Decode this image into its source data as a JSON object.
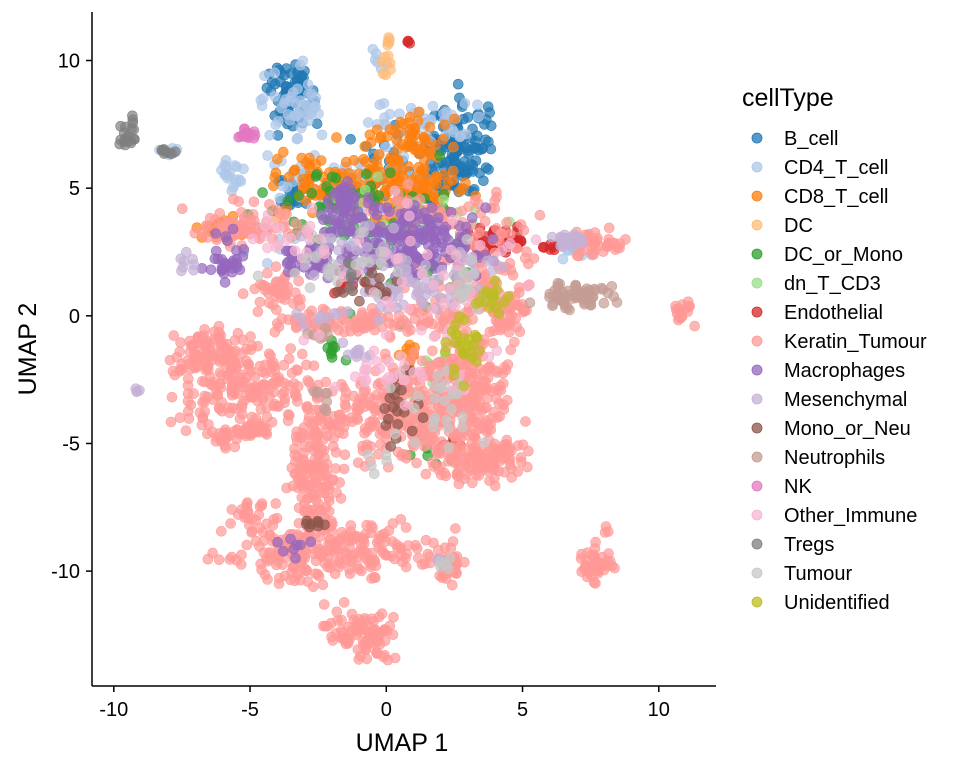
{
  "chart_data": {
    "type": "scatter",
    "title": "",
    "xlabel": "UMAP 1",
    "ylabel": "UMAP 2",
    "xlim": [
      -10.8,
      12.1
    ],
    "ylim": [
      -14.5,
      11.9
    ],
    "xticks": [
      -10,
      -5,
      0,
      5,
      10
    ],
    "yticks": [
      -10,
      -5,
      0,
      5,
      10
    ],
    "grid": false,
    "legend": {
      "title": "cellType",
      "placement": "right"
    },
    "series": [
      {
        "name": "B_cell",
        "color": "#1f77b4",
        "clusters": [
          [
            -3.5,
            8.7,
            0.6,
            0.9,
            70
          ],
          [
            2.6,
            6.6,
            0.8,
            1.2,
            120
          ],
          [
            -3.6,
            4.9,
            0.4,
            0.5,
            25
          ],
          [
            0.6,
            6.2,
            1.3,
            1.0,
            40
          ]
        ]
      },
      {
        "name": "CD4_T_cell",
        "color": "#aec7e8",
        "clusters": [
          [
            -3.3,
            8.3,
            0.7,
            0.9,
            45
          ],
          [
            -1.6,
            5.3,
            1.7,
            0.7,
            60
          ],
          [
            -5.7,
            5.5,
            0.4,
            0.3,
            18
          ],
          [
            1.5,
            7.6,
            1.5,
            0.6,
            40
          ],
          [
            -1.5,
            3.3,
            2.2,
            0.6,
            40
          ],
          [
            7.0,
            2.6,
            0.6,
            0.3,
            15
          ],
          [
            -8.0,
            6.4,
            0.3,
            0.15,
            8
          ],
          [
            -0.2,
            9.9,
            0.25,
            0.3,
            6
          ]
        ]
      },
      {
        "name": "CD8_T_cell",
        "color": "#ff7f0e",
        "clusters": [
          [
            0.4,
            5.3,
            1.6,
            0.9,
            140
          ],
          [
            -2.7,
            5.2,
            0.9,
            0.7,
            50
          ],
          [
            -6.0,
            3.4,
            0.5,
            0.3,
            22
          ],
          [
            0.9,
            7.1,
            0.8,
            0.6,
            40
          ],
          [
            0.8,
            -1.6,
            0.2,
            0.3,
            10
          ]
        ]
      },
      {
        "name": "DC",
        "color": "#ffbb78",
        "clusters": [
          [
            0.0,
            10.3,
            0.12,
            0.6,
            12
          ],
          [
            -4.0,
            3.9,
            0.3,
            0.2,
            6
          ]
        ]
      },
      {
        "name": "DC_or_Mono",
        "color": "#2ca02c",
        "clusters": [
          [
            -1.0,
            4.3,
            2.2,
            1.0,
            60
          ],
          [
            1.5,
            1.5,
            1.5,
            0.9,
            25
          ],
          [
            -2.0,
            -1.3,
            0.4,
            0.3,
            8
          ],
          [
            1.8,
            -5.3,
            0.8,
            0.5,
            10
          ]
        ]
      },
      {
        "name": "dn_T_CD3",
        "color": "#98df8a",
        "clusters": [
          [
            0.0,
            3.5,
            2.5,
            1.2,
            35
          ],
          [
            1.6,
            -2.5,
            0.9,
            0.9,
            18
          ]
        ]
      },
      {
        "name": "Endothelial",
        "color": "#d62728",
        "clusters": [
          [
            4.1,
            2.9,
            0.6,
            0.3,
            45
          ],
          [
            0.8,
            10.7,
            0.05,
            0.05,
            3
          ],
          [
            6.0,
            2.7,
            0.2,
            0.1,
            6
          ],
          [
            -1.2,
            1.5,
            0.6,
            0.4,
            15
          ],
          [
            2.5,
            -5.0,
            0.3,
            0.3,
            5
          ]
        ]
      },
      {
        "name": "Keratin_Tumour",
        "color": "#ff9896",
        "clusters": [
          [
            -2.0,
            -9.2,
            2.4,
            0.7,
            240
          ],
          [
            -2.7,
            -6.2,
            0.6,
            1.8,
            160
          ],
          [
            0.7,
            -3.8,
            1.9,
            1.2,
            280
          ],
          [
            3.0,
            -2.8,
            0.9,
            1.2,
            160
          ],
          [
            3.6,
            -5.5,
            0.9,
            0.6,
            130
          ],
          [
            -5.0,
            -2.8,
            1.5,
            1.0,
            180
          ],
          [
            -6.4,
            -1.4,
            0.8,
            0.6,
            90
          ],
          [
            -5.0,
            -4.5,
            0.4,
            0.2,
            35
          ],
          [
            -1.6,
            -0.3,
            2.2,
            0.3,
            90
          ],
          [
            2.3,
            -9.8,
            0.3,
            0.4,
            35
          ],
          [
            7.7,
            -9.7,
            0.4,
            0.4,
            40
          ],
          [
            -0.8,
            -12.4,
            0.8,
            0.6,
            90
          ],
          [
            3.8,
            1.8,
            1.2,
            1.5,
            90
          ],
          [
            4.4,
            0.3,
            0.5,
            0.6,
            50
          ],
          [
            -5.2,
            3.5,
            1.2,
            0.5,
            70
          ],
          [
            -4.0,
            1.0,
            0.7,
            0.6,
            40
          ],
          [
            7.6,
            2.9,
            0.7,
            0.3,
            40
          ],
          [
            10.9,
            0.2,
            0.3,
            0.3,
            20
          ],
          [
            2.0,
            0.0,
            0.8,
            0.6,
            40
          ],
          [
            1.8,
            4.1,
            1.5,
            0.5,
            40
          ],
          [
            -6.0,
            -4.8,
            0.3,
            0.3,
            20
          ],
          [
            -4.8,
            -7.6,
            0.5,
            0.3,
            20
          ],
          [
            8.1,
            -8.4,
            0.1,
            0.1,
            3
          ]
        ]
      },
      {
        "name": "Macrophages",
        "color": "#9467bd",
        "clusters": [
          [
            0.9,
            2.9,
            1.6,
            0.9,
            190
          ],
          [
            -1.5,
            4.1,
            0.5,
            0.6,
            50
          ],
          [
            -5.7,
            2.2,
            0.5,
            0.6,
            30
          ],
          [
            -2.3,
            2.1,
            0.7,
            0.5,
            30
          ],
          [
            -3.3,
            -9.0,
            0.4,
            0.3,
            8
          ],
          [
            -3.6,
            2.1,
            0.4,
            0.4,
            12
          ]
        ]
      },
      {
        "name": "Mesenchymal",
        "color": "#c5b0d5",
        "clusters": [
          [
            6.7,
            2.9,
            0.4,
            0.2,
            20
          ],
          [
            0.5,
            0.8,
            1.0,
            0.6,
            40
          ],
          [
            -0.8,
            2.3,
            1.5,
            0.8,
            50
          ],
          [
            2.8,
            1.8,
            0.7,
            0.5,
            20
          ],
          [
            -1.0,
            -1.4,
            0.5,
            0.2,
            10
          ],
          [
            -9.1,
            -3.0,
            0.1,
            0.1,
            4
          ],
          [
            2.0,
            -9.5,
            0.2,
            0.2,
            5
          ],
          [
            -7.2,
            2.0,
            0.2,
            0.4,
            8
          ],
          [
            -2.5,
            -0.1,
            0.6,
            0.3,
            10
          ]
        ]
      },
      {
        "name": "Mono_or_Neu",
        "color": "#8c564b",
        "clusters": [
          [
            -1.0,
            1.2,
            0.7,
            0.4,
            15
          ],
          [
            0.6,
            -3.8,
            0.5,
            1.0,
            20
          ],
          [
            -2.5,
            -8.1,
            0.3,
            0.2,
            8
          ]
        ]
      },
      {
        "name": "Neutrophils",
        "color": "#c49c94",
        "clusters": [
          [
            7.0,
            0.8,
            0.9,
            0.3,
            70
          ],
          [
            -2.0,
            -3.2,
            0.4,
            0.3,
            8
          ],
          [
            -2.7,
            -0.8,
            0.3,
            0.2,
            6
          ]
        ]
      },
      {
        "name": "NK",
        "color": "#e377c2",
        "clusters": [
          [
            -5.1,
            7.1,
            0.2,
            0.12,
            16
          ]
        ]
      },
      {
        "name": "Other_Immune",
        "color": "#f7b6d2",
        "clusters": [
          [
            1.8,
            1.0,
            2.5,
            2.0,
            50
          ],
          [
            0.8,
            -2.5,
            1.5,
            1.0,
            25
          ],
          [
            -3.5,
            3.0,
            1.0,
            0.6,
            20
          ]
        ]
      },
      {
        "name": "Tregs",
        "color": "#7f7f7f",
        "clusters": [
          [
            -9.5,
            7.2,
            0.18,
            0.3,
            20
          ],
          [
            -8.0,
            6.4,
            0.2,
            0.1,
            8
          ],
          [
            -1.3,
            1.6,
            0.2,
            0.3,
            5
          ]
        ]
      },
      {
        "name": "Tumour",
        "color": "#c7c7c7",
        "clusters": [
          [
            2.0,
            -3.5,
            1.0,
            1.4,
            25
          ],
          [
            -1.6,
            1.8,
            1.6,
            0.8,
            20
          ],
          [
            3.0,
            1.2,
            0.4,
            0.8,
            15
          ],
          [
            2.2,
            -9.8,
            0.2,
            0.2,
            5
          ],
          [
            -0.4,
            -5.7,
            0.4,
            0.3,
            5
          ]
        ]
      },
      {
        "name": "Unidentified",
        "color": "#bcbd22",
        "clusters": [
          [
            2.8,
            -1.2,
            0.4,
            0.8,
            30
          ],
          [
            3.9,
            0.8,
            0.3,
            0.4,
            15
          ]
        ]
      }
    ]
  }
}
